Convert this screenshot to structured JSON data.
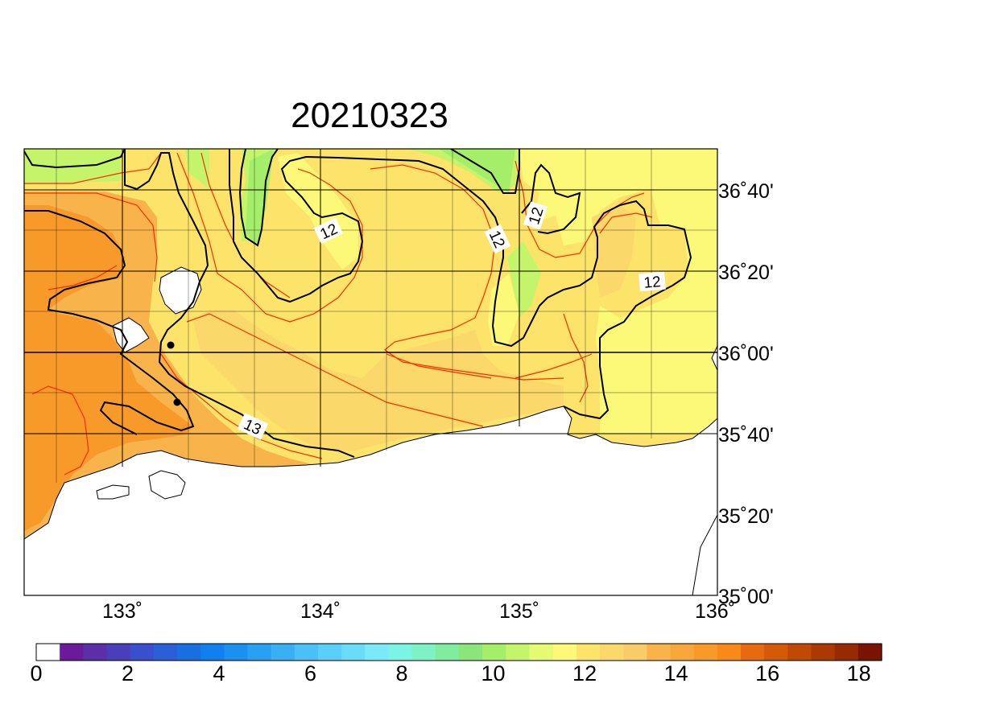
{
  "title": "20210323",
  "map": {
    "lon_range": [
      132.5,
      136.0
    ],
    "lat_range": [
      35.0,
      36.9166
    ],
    "x_tick_labels": [
      "133˚",
      "134˚",
      "135˚",
      "136˚"
    ],
    "y_tick_labels": [
      "36˚40'",
      "36˚20'",
      "36˚00'",
      "35˚40'",
      "35˚20'",
      "35˚00'"
    ],
    "contour_labels": [
      "12",
      "12",
      "12",
      "12",
      "13"
    ],
    "land_color": "#ffffff",
    "coast_color": "#000000",
    "contour_major_color": "#000000",
    "contour_minor_color": "#ff2a00"
  },
  "colorbar": {
    "min": 0,
    "max": 18.5,
    "step": 0.5,
    "tick_labels": [
      "0",
      "2",
      "4",
      "6",
      "8",
      "10",
      "12",
      "14",
      "16",
      "18"
    ],
    "colors": [
      "#ffffff",
      "#6a1a9a",
      "#5a2fa8",
      "#4a3fb8",
      "#3a4fcc",
      "#2a5fd8",
      "#1a6fe0",
      "#1080ee",
      "#1a90f0",
      "#2aa0f2",
      "#3ab0f4",
      "#4ac0f6",
      "#5ad0f8",
      "#6adcf8",
      "#7aeaf8",
      "#7af4e4",
      "#7ef2c4",
      "#80ec9e",
      "#8ae67a",
      "#a4ee6a",
      "#c4f46a",
      "#e4fa72",
      "#fcf878",
      "#fce46a",
      "#fad86a",
      "#f8cc66",
      "#f8b44a",
      "#f8a83a",
      "#f89a2a",
      "#f88a1a",
      "#e86a10",
      "#d45a08",
      "#c04a04",
      "#aa3a02",
      "#962a00",
      "#7a1400"
    ]
  }
}
